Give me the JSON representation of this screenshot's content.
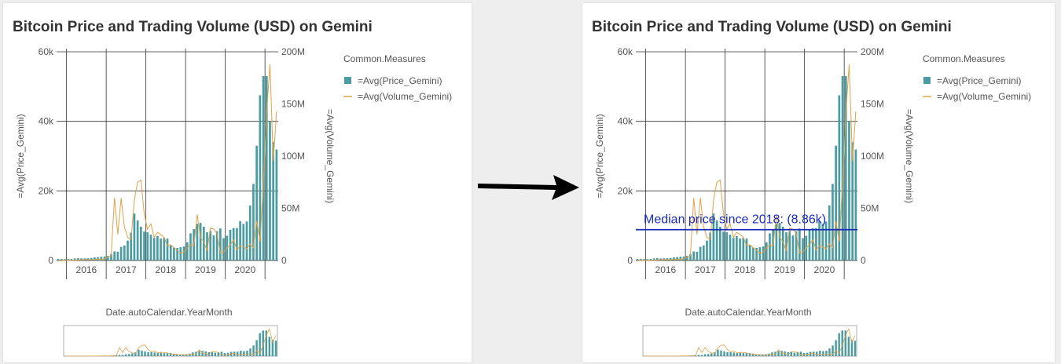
{
  "colors": {
    "price_bar": "#4a9ca2",
    "volume_line": "#dfa24a",
    "median_line": "#1a2db8",
    "grid": "#333333",
    "arrow": "#000000"
  },
  "chart_data": [
    {
      "type": "bar",
      "title": "Bitcoin Price and Trading Volume (USD) on Gemini",
      "xlabel": "Date.autoCalendar.YearMonth",
      "ylabel": "=Avg(Price_Gemini)",
      "y2label": "=Avg(Volume_Gemini)",
      "legend_title": "Common.Measures",
      "legend_position": "right",
      "x_ticks": [
        "2016",
        "2017",
        "2018",
        "2019",
        "2020"
      ],
      "y_ticks": [
        "0",
        "20k",
        "40k",
        "60k"
      ],
      "y2_ticks": [
        "0",
        "50M",
        "100M",
        "150M",
        "200M"
      ],
      "ylim": [
        0,
        60000
      ],
      "y2lim": [
        0,
        200000000
      ],
      "grid": true,
      "series": [
        {
          "name": "=Avg(Price_Gemini)",
          "kind": "bar",
          "axis": "left",
          "values": [
            430,
            420,
            400,
            390,
            450,
            580,
            660,
            590,
            610,
            640,
            720,
            880,
            960,
            1050,
            1100,
            1300,
            1800,
            2600,
            2500,
            3900,
            4300,
            5700,
            8000,
            13500,
            11500,
            9700,
            8300,
            8100,
            7400,
            6500,
            7000,
            6300,
            6500,
            6300,
            4300,
            3700,
            3600,
            3800,
            4000,
            5200,
            7800,
            9000,
            10500,
            10800,
            9700,
            8100,
            8500,
            7200,
            8400,
            9200,
            6400,
            7100,
            8800,
            9300,
            9300,
            11300,
            10500,
            11200,
            15800,
            22000,
            33000,
            47500,
            53000,
            53000,
            40000,
            34000,
            31900
          ],
          "x": [
            "2015-10",
            "2015-11",
            "2015-12",
            "2016-01",
            "2016-02",
            "2016-03",
            "2016-04",
            "2016-05",
            "2016-06",
            "2016-07",
            "2016-08",
            "2016-09",
            "2016-10",
            "2016-11",
            "2016-12",
            "2017-01",
            "2017-02",
            "2017-03",
            "2017-04",
            "2017-05",
            "2017-06",
            "2017-07",
            "2017-08",
            "2017-09",
            "2017-10",
            "2017-11",
            "2017-12",
            "2018-01",
            "2018-02",
            "2018-03",
            "2018-04",
            "2018-05",
            "2018-06",
            "2018-07",
            "2018-08",
            "2018-09",
            "2018-10",
            "2018-11",
            "2018-12",
            "2019-01",
            "2019-02",
            "2019-03",
            "2019-04",
            "2019-05",
            "2019-06",
            "2019-07",
            "2019-08",
            "2019-09",
            "2019-10",
            "2019-11",
            "2019-12",
            "2020-01",
            "2020-02",
            "2020-03",
            "2020-04",
            "2020-05",
            "2020-06",
            "2020-07",
            "2020-08",
            "2020-09",
            "2020-10",
            "2020-11",
            "2020-12",
            "2021-01",
            "2021-02",
            "2021-03",
            "2021-04"
          ]
        },
        {
          "name": "=Avg(Volume_Gemini)",
          "kind": "line",
          "axis": "right",
          "values": [
            300000,
            200000,
            150000,
            100000,
            200000,
            300000,
            400000,
            500000,
            700000,
            800000,
            600000,
            900000,
            1200000,
            800000,
            1500000,
            3000000,
            4500000,
            60000000,
            25000000,
            60000000,
            32000000,
            22000000,
            20000000,
            58000000,
            75000000,
            77000000,
            45000000,
            30000000,
            35000000,
            22000000,
            27000000,
            25000000,
            22000000,
            14000000,
            15000000,
            12000000,
            10000000,
            7000000,
            8000000,
            12000000,
            15000000,
            14000000,
            44000000,
            22000000,
            18000000,
            9000000,
            31000000,
            30000000,
            26000000,
            7000000,
            8000000,
            12000000,
            15000000,
            20000000,
            10000000,
            14000000,
            13000000,
            11000000,
            16000000,
            12000000,
            38000000,
            18000000,
            75000000,
            142000000,
            188000000,
            95000000,
            143000000
          ]
        }
      ]
    },
    {
      "type": "bar",
      "title": "Bitcoin Price and Trading Volume (USD) on Gemini",
      "xlabel": "Date.autoCalendar.YearMonth",
      "ylabel": "=Avg(Price_Gemini)",
      "y2label": "=Avg(Volume_Gemini)",
      "legend_title": "Common.Measures",
      "legend_position": "right",
      "x_ticks": [
        "2016",
        "2017",
        "2018",
        "2019",
        "2020"
      ],
      "y_ticks": [
        "0",
        "20k",
        "40k",
        "60k"
      ],
      "y2_ticks": [
        "0",
        "50M",
        "100M",
        "150M",
        "200M"
      ],
      "ylim": [
        0,
        60000
      ],
      "y2lim": [
        0,
        200000000
      ],
      "grid": true,
      "annotation": {
        "label": "Median price since 2018:  (8.86k)",
        "value": 8860
      }
    }
  ]
}
